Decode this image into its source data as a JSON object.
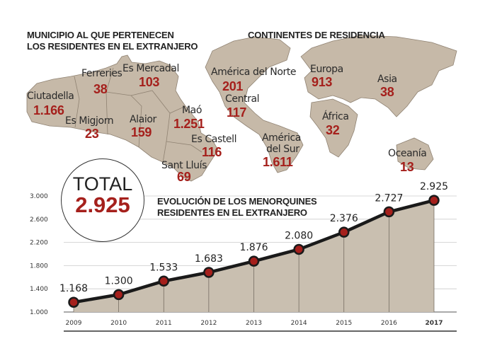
{
  "titles": {
    "municipio_line1": "MUNICIPIO AL QUE PERTENECEN",
    "municipio_line2": "LOS RESIDENTES EN EL EXTRANJERO",
    "continentes": "CONTINENTES DE RESIDENCIA",
    "evolucion_line1": "EVOLUCIÓN DE LOS MENORQUINES",
    "evolucion_line2": "RESIDENTES EN EL EXTRANJERO"
  },
  "municipios": [
    {
      "name": "Ciutadella",
      "value": "1.166"
    },
    {
      "name": "Ferreries",
      "value": "38"
    },
    {
      "name": "Es Mercadal",
      "value": "103"
    },
    {
      "name": "Es Migjorn",
      "value": "23"
    },
    {
      "name": "Alaior",
      "value": "159"
    },
    {
      "name": "Maó",
      "value": "1.251"
    },
    {
      "name": "Es Castell",
      "value": "116"
    },
    {
      "name": "Sant Lluís",
      "value": "69"
    }
  ],
  "continentes": [
    {
      "name": "América del Norte",
      "value": "201"
    },
    {
      "name": "Central",
      "value": "117"
    },
    {
      "name": "América del Sur",
      "name_line1": "América",
      "name_line2": "del Sur",
      "value": "1.611"
    },
    {
      "name": "Europa",
      "value": "913"
    },
    {
      "name": "Asia",
      "value": "38"
    },
    {
      "name": "África",
      "value": "32"
    },
    {
      "name": "Oceanía",
      "value": "13"
    }
  ],
  "total": {
    "label": "TOTAL",
    "value": "2.925"
  },
  "colors": {
    "accent": "#a5201c",
    "land": "#c6b9a8",
    "area": "#c9bfb0"
  },
  "chart_data": {
    "type": "area",
    "title": "EVOLUCIÓN DE LOS MENORQUINES RESIDENTES EN EL EXTRANJERO",
    "x": [
      "2009",
      "2010",
      "2011",
      "2012",
      "2013",
      "2014",
      "2015",
      "2016",
      "2017"
    ],
    "values": [
      1168,
      1300,
      1533,
      1683,
      1876,
      2080,
      2376,
      2727,
      2925
    ],
    "value_labels": [
      "1.168",
      "1.300",
      "1.533",
      "1.683",
      "1.876",
      "2.080",
      "2.376",
      "2.727",
      "2.925"
    ],
    "yticks": [
      1000,
      1400,
      1800,
      2200,
      2600,
      3000
    ],
    "ytick_labels": [
      "1.000",
      "1.400",
      "1.800",
      "2.200",
      "2.600",
      "3.000"
    ],
    "ylim": [
      1000,
      3000
    ],
    "grid": true,
    "xlabel": "",
    "ylabel": ""
  }
}
